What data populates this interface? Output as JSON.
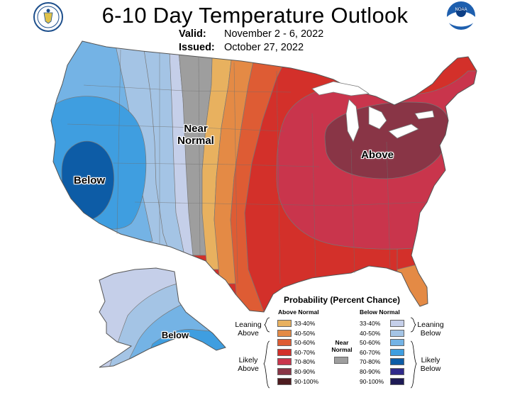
{
  "title": "6-10 Day Temperature Outlook",
  "valid_label": "Valid:",
  "valid_value": "November 2 - 6, 2022",
  "issued_label": "Issued:",
  "issued_value": "October 27, 2022",
  "logo_left": "U.S. Department of Commerce seal",
  "logo_right": "NOAA",
  "map_labels": {
    "near": "Near",
    "normal": "Normal",
    "above": "Above",
    "below_west": "Below",
    "below_alaska": "Below"
  },
  "legend": {
    "title": "Probability (Percent Chance)",
    "above_header": "Above Normal",
    "below_header": "Below Normal",
    "leaning_above": [
      "Leaning",
      "Above"
    ],
    "likely_above": [
      "Likely",
      "Above"
    ],
    "leaning_below": [
      "Leaning",
      "Below"
    ],
    "likely_below": [
      "Likely",
      "Below"
    ],
    "near_normal": [
      "Near",
      "Normal"
    ],
    "near_normal_color": "#9e9e9e",
    "above_rows": [
      {
        "label": "33-40%",
        "color": "#e8b15f"
      },
      {
        "label": "40-50%",
        "color": "#e48a45"
      },
      {
        "label": "50-60%",
        "color": "#de5c34"
      },
      {
        "label": "60-70%",
        "color": "#d3302a"
      },
      {
        "label": "70-80%",
        "color": "#c9354c"
      },
      {
        "label": "80-90%",
        "color": "#893546"
      },
      {
        "label": "90-100%",
        "color": "#4e1b1f"
      }
    ],
    "below_rows": [
      {
        "label": "33-40%",
        "color": "#c5cfe9"
      },
      {
        "label": "40-50%",
        "color": "#a4c4e5"
      },
      {
        "label": "50-60%",
        "color": "#74b3e5"
      },
      {
        "label": "60-70%",
        "color": "#3f9ee0"
      },
      {
        "label": "70-80%",
        "color": "#0d5ca6"
      },
      {
        "label": "80-90%",
        "color": "#302a8a"
      },
      {
        "label": "90-100%",
        "color": "#1d1a55"
      }
    ]
  }
}
